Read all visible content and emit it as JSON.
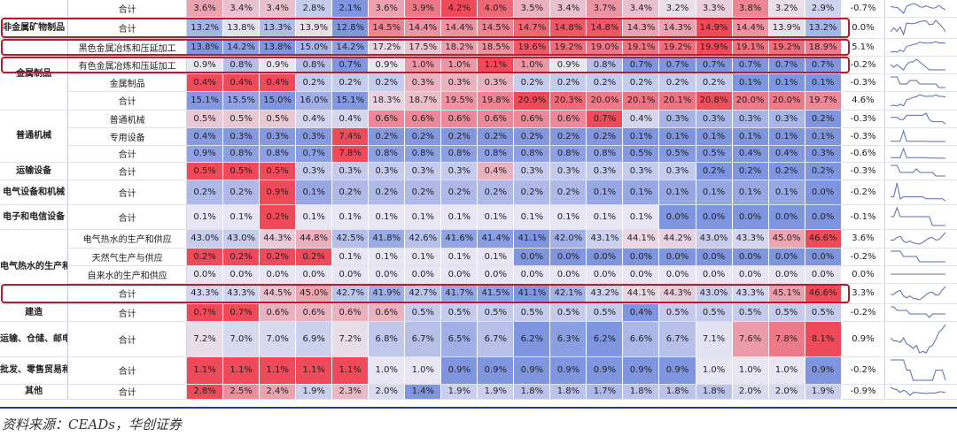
{
  "source": "资料来源：CEADs，华创证券",
  "chart_data": {
    "type": "heatmap",
    "title": "",
    "rows": [
      {
        "cat": "",
        "sub": "合计",
        "values": [
          3.6,
          3.4,
          3.4,
          2.8,
          2.1,
          3.6,
          3.9,
          4.2,
          4.0,
          3.5,
          3.4,
          3.7,
          3.4,
          3.2,
          3.3,
          3.8,
          3.2,
          2.9
        ],
        "change": "-0.7%",
        "highlight": false
      },
      {
        "cat": "非金属矿物制品",
        "sub": "合计",
        "values": [
          13.2,
          13.8,
          13.3,
          13.9,
          12.8,
          14.5,
          14.4,
          14.4,
          14.5,
          14.7,
          14.8,
          14.8,
          14.3,
          14.3,
          14.9,
          14.4,
          13.9,
          13.2
        ],
        "change": "0.0%",
        "highlight": true
      },
      {
        "cat": "金属制品",
        "sub": "黑色金属冶炼和压延加工",
        "values": [
          13.8,
          14.2,
          13.8,
          15.0,
          14.2,
          17.2,
          17.5,
          18.2,
          18.5,
          19.6,
          19.2,
          19.0,
          19.1,
          19.2,
          19.9,
          19.1,
          19.2,
          18.9
        ],
        "change": "5.1%",
        "highlight": true
      },
      {
        "cat": "",
        "sub": "有色金属冶炼和压延加工",
        "values": [
          0.9,
          0.8,
          0.9,
          0.8,
          0.7,
          0.9,
          1.0,
          1.0,
          1.1,
          1.0,
          0.9,
          0.8,
          0.7,
          0.7,
          0.7,
          0.7,
          0.7,
          0.7
        ],
        "change": "-0.2%",
        "highlight": true
      },
      {
        "cat": "",
        "sub": "金属制品",
        "values": [
          0.4,
          0.4,
          0.4,
          0.2,
          0.2,
          0.2,
          0.3,
          0.3,
          0.3,
          0.2,
          0.2,
          0.2,
          0.2,
          0.2,
          0.2,
          0.1,
          0.1,
          0.1
        ],
        "change": "-0.3%",
        "highlight": false
      },
      {
        "cat": "",
        "sub": "合计",
        "values": [
          15.1,
          15.5,
          15.0,
          16.0,
          15.1,
          18.3,
          18.7,
          19.5,
          19.8,
          20.9,
          20.3,
          20.0,
          20.1,
          20.1,
          20.8,
          20.0,
          20.0,
          19.7
        ],
        "change": "4.6%",
        "highlight": false
      },
      {
        "cat": "普通机械",
        "sub": "普通机械",
        "values": [
          0.5,
          0.5,
          0.5,
          0.4,
          0.4,
          0.6,
          0.6,
          0.6,
          0.6,
          0.6,
          0.6,
          0.7,
          0.4,
          0.3,
          0.3,
          0.3,
          0.3,
          0.2
        ],
        "change": "-0.3%",
        "highlight": false
      },
      {
        "cat": "",
        "sub": "专用设备",
        "values": [
          0.4,
          0.3,
          0.3,
          0.3,
          7.4,
          0.2,
          0.2,
          0.2,
          0.2,
          0.2,
          0.2,
          0.2,
          0.1,
          0.1,
          0.1,
          0.1,
          0.1,
          0.1
        ],
        "change": "-0.3%",
        "highlight": false
      },
      {
        "cat": "",
        "sub": "合计",
        "values": [
          0.9,
          0.8,
          0.8,
          0.7,
          7.8,
          0.8,
          0.8,
          0.8,
          0.8,
          0.8,
          0.8,
          0.8,
          0.5,
          0.5,
          0.5,
          0.4,
          0.4,
          0.3
        ],
        "change": "-0.6%",
        "highlight": false
      },
      {
        "cat": "运输设备",
        "sub": "合计",
        "values": [
          0.5,
          0.5,
          0.5,
          0.3,
          0.3,
          0.3,
          0.3,
          0.3,
          0.4,
          0.3,
          0.3,
          0.3,
          0.3,
          0.3,
          0.2,
          0.2,
          0.2,
          0.2
        ],
        "change": "-0.3%",
        "highlight": false
      },
      {
        "cat": "电气设备和机械",
        "sub": "合计",
        "values": [
          0.2,
          0.2,
          0.9,
          0.1,
          0.2,
          0.2,
          0.2,
          0.2,
          0.2,
          0.2,
          0.2,
          0.1,
          0.1,
          0.1,
          0.1,
          0.1,
          0.1,
          0.0
        ],
        "change": "-0.2%",
        "highlight": false
      },
      {
        "cat": "电子和电信设备",
        "sub": "合计",
        "values": [
          0.1,
          0.1,
          0.2,
          0.1,
          0.1,
          0.1,
          0.1,
          0.1,
          0.1,
          0.1,
          0.1,
          0.1,
          0.1,
          0.0,
          0.0,
          0.0,
          0.0,
          0.0
        ],
        "change": "-0.1%",
        "highlight": false
      },
      {
        "cat": "电气热水的生产和供应",
        "sub": "电气热水的生产和供应",
        "values": [
          43.0,
          43.0,
          44.3,
          44.8,
          42.5,
          41.8,
          42.6,
          41.6,
          41.4,
          41.1,
          42.0,
          43.1,
          44.1,
          44.2,
          43.0,
          43.3,
          45.0,
          46.6
        ],
        "change": "3.6%",
        "highlight": false
      },
      {
        "cat": "",
        "sub": "天然气生产与供应",
        "values": [
          0.2,
          0.2,
          0.2,
          0.2,
          0.1,
          0.1,
          0.1,
          0.1,
          0.1,
          0.0,
          0.0,
          0.0,
          0.0,
          0.0,
          0.0,
          0.0,
          0.0,
          0.0
        ],
        "change": "-0.2%",
        "highlight": false
      },
      {
        "cat": "",
        "sub": "自来水的生产和供应",
        "values": [
          0.0,
          0.0,
          0.0,
          0.0,
          0.0,
          0.0,
          0.0,
          0.0,
          0.0,
          0.0,
          0.0,
          0.0,
          0.0,
          0.0,
          0.0,
          0.0,
          0.0,
          0.0
        ],
        "change": "0.0%",
        "highlight": false
      },
      {
        "cat": "",
        "sub": "合计",
        "values": [
          43.3,
          43.3,
          44.5,
          45.0,
          42.7,
          41.9,
          42.7,
          41.7,
          41.5,
          41.1,
          42.1,
          43.2,
          44.1,
          44.3,
          43.0,
          43.3,
          45.1,
          46.6
        ],
        "change": "3.3%",
        "highlight": true
      },
      {
        "cat": "建造",
        "sub": "合计",
        "values": [
          0.7,
          0.7,
          0.6,
          0.6,
          0.6,
          0.6,
          0.5,
          0.5,
          0.5,
          0.5,
          0.5,
          0.5,
          0.4,
          0.5,
          0.5,
          0.5,
          0.5,
          0.5
        ],
        "change": "-0.2%",
        "highlight": false
      },
      {
        "cat": "运输、仓储、邮电服务",
        "sub": "合计",
        "values": [
          7.2,
          7.0,
          7.0,
          6.9,
          7.2,
          6.8,
          6.7,
          6.5,
          6.7,
          6.2,
          6.3,
          6.2,
          6.6,
          6.7,
          7.1,
          7.6,
          7.8,
          8.1
        ],
        "change": "0.9%",
        "highlight": false
      },
      {
        "cat": "批发、零售贸易和餐饮服务",
        "sub": "合计",
        "values": [
          1.1,
          1.1,
          1.1,
          1.1,
          1.1,
          1.0,
          1.0,
          0.9,
          0.9,
          0.9,
          0.9,
          0.9,
          0.9,
          0.9,
          1.0,
          1.0,
          1.0,
          0.9
        ],
        "change": "-0.2%",
        "highlight": false
      },
      {
        "cat": "其他",
        "sub": "合计",
        "values": [
          2.8,
          2.5,
          2.4,
          1.9,
          2.3,
          2.0,
          1.4,
          1.9,
          1.9,
          1.8,
          1.8,
          1.7,
          1.8,
          1.8,
          1.8,
          2.0,
          2.0,
          1.9
        ],
        "change": "-0.9%",
        "highlight": false
      }
    ],
    "color_scale": {
      "low": "#7f95e0",
      "mid": "#e8e6f2",
      "high": "#ee4a5a"
    },
    "sparkline_color": "#5a6aa8"
  }
}
